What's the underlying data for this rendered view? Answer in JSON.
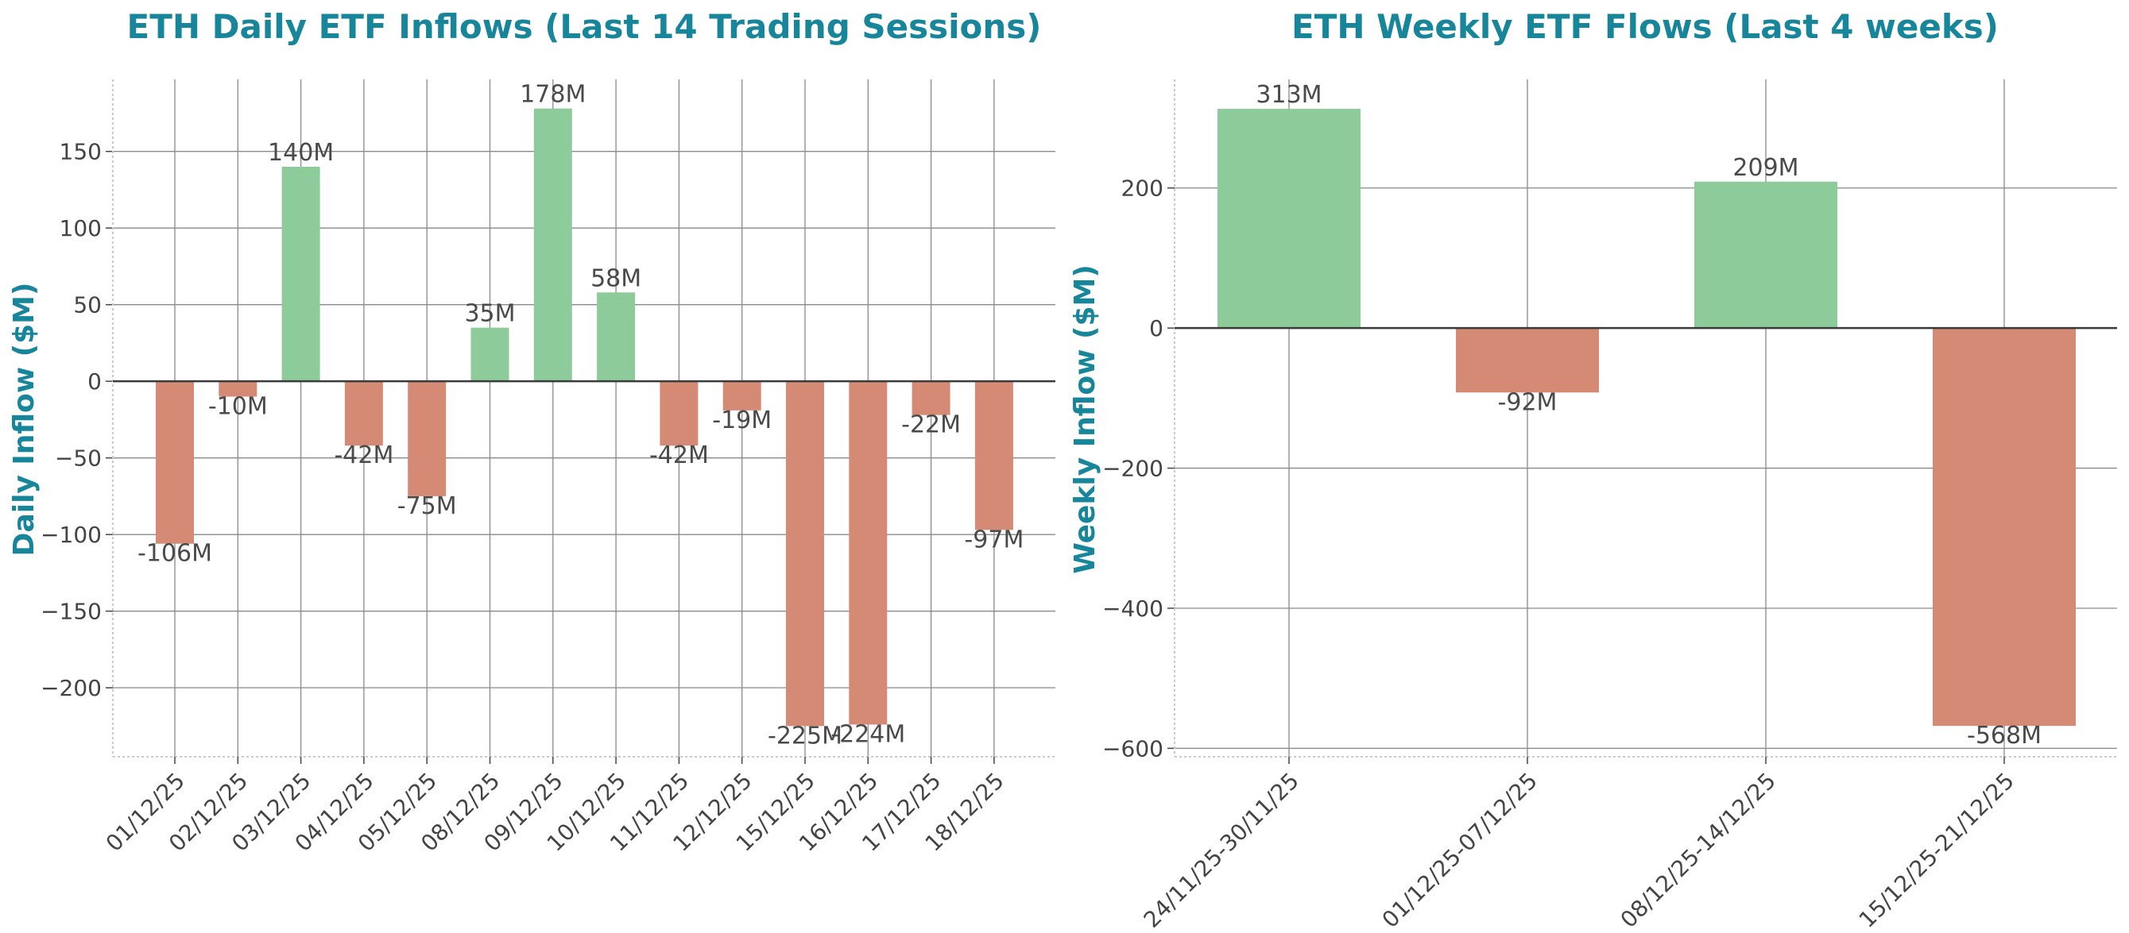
{
  "chart_data": [
    {
      "type": "bar",
      "title": "ETH Daily ETF Inflows (Last 14 Trading Sessions)",
      "xlabel": "",
      "ylabel": "Daily Inflow ($M)",
      "categories": [
        "01/12/25",
        "02/12/25",
        "03/12/25",
        "04/12/25",
        "05/12/25",
        "08/12/25",
        "09/12/25",
        "10/12/25",
        "11/12/25",
        "12/12/25",
        "15/12/25",
        "16/12/25",
        "17/12/25",
        "18/12/25"
      ],
      "values": [
        -106,
        -10,
        140,
        -42,
        -75,
        35,
        178,
        58,
        -42,
        -19,
        -225,
        -224,
        -22,
        -97
      ],
      "labels": [
        "-106M",
        "-10M",
        "140M",
        "-42M",
        "-75M",
        "35M",
        "178M",
        "58M",
        "-42M",
        "-19M",
        "-225M",
        "-224M",
        "-22M",
        "-97M"
      ],
      "yticks": [
        -200,
        -150,
        -100,
        -50,
        0,
        50,
        100,
        150
      ],
      "ytick_labels": [
        "−200",
        "−150",
        "−100",
        "−50",
        "0",
        "50",
        "100",
        "150"
      ],
      "ylim": [
        -245,
        197
      ],
      "grid": true,
      "colors": {
        "positive": "#8dcb9b",
        "negative": "#d48a74",
        "title": "#17869a"
      }
    },
    {
      "type": "bar",
      "title": "ETH Weekly ETF Flows (Last 4 weeks)",
      "xlabel": "",
      "ylabel": "Weekly Inflow ($M)",
      "categories": [
        "24/11/25-30/11/25",
        "01/12/25-07/12/25",
        "08/12/25-14/12/25",
        "15/12/25-21/12/25"
      ],
      "values": [
        313,
        -92,
        209,
        -568
      ],
      "labels": [
        "313M",
        "-92M",
        "209M",
        "-568M"
      ],
      "yticks": [
        -600,
        -400,
        -200,
        0,
        200
      ],
      "ytick_labels": [
        "−600",
        "−400",
        "−200",
        "0",
        "200"
      ],
      "ylim": [
        -612,
        355
      ],
      "grid": true,
      "colors": {
        "positive": "#8dcb9b",
        "negative": "#d48a74",
        "title": "#17869a"
      }
    }
  ]
}
